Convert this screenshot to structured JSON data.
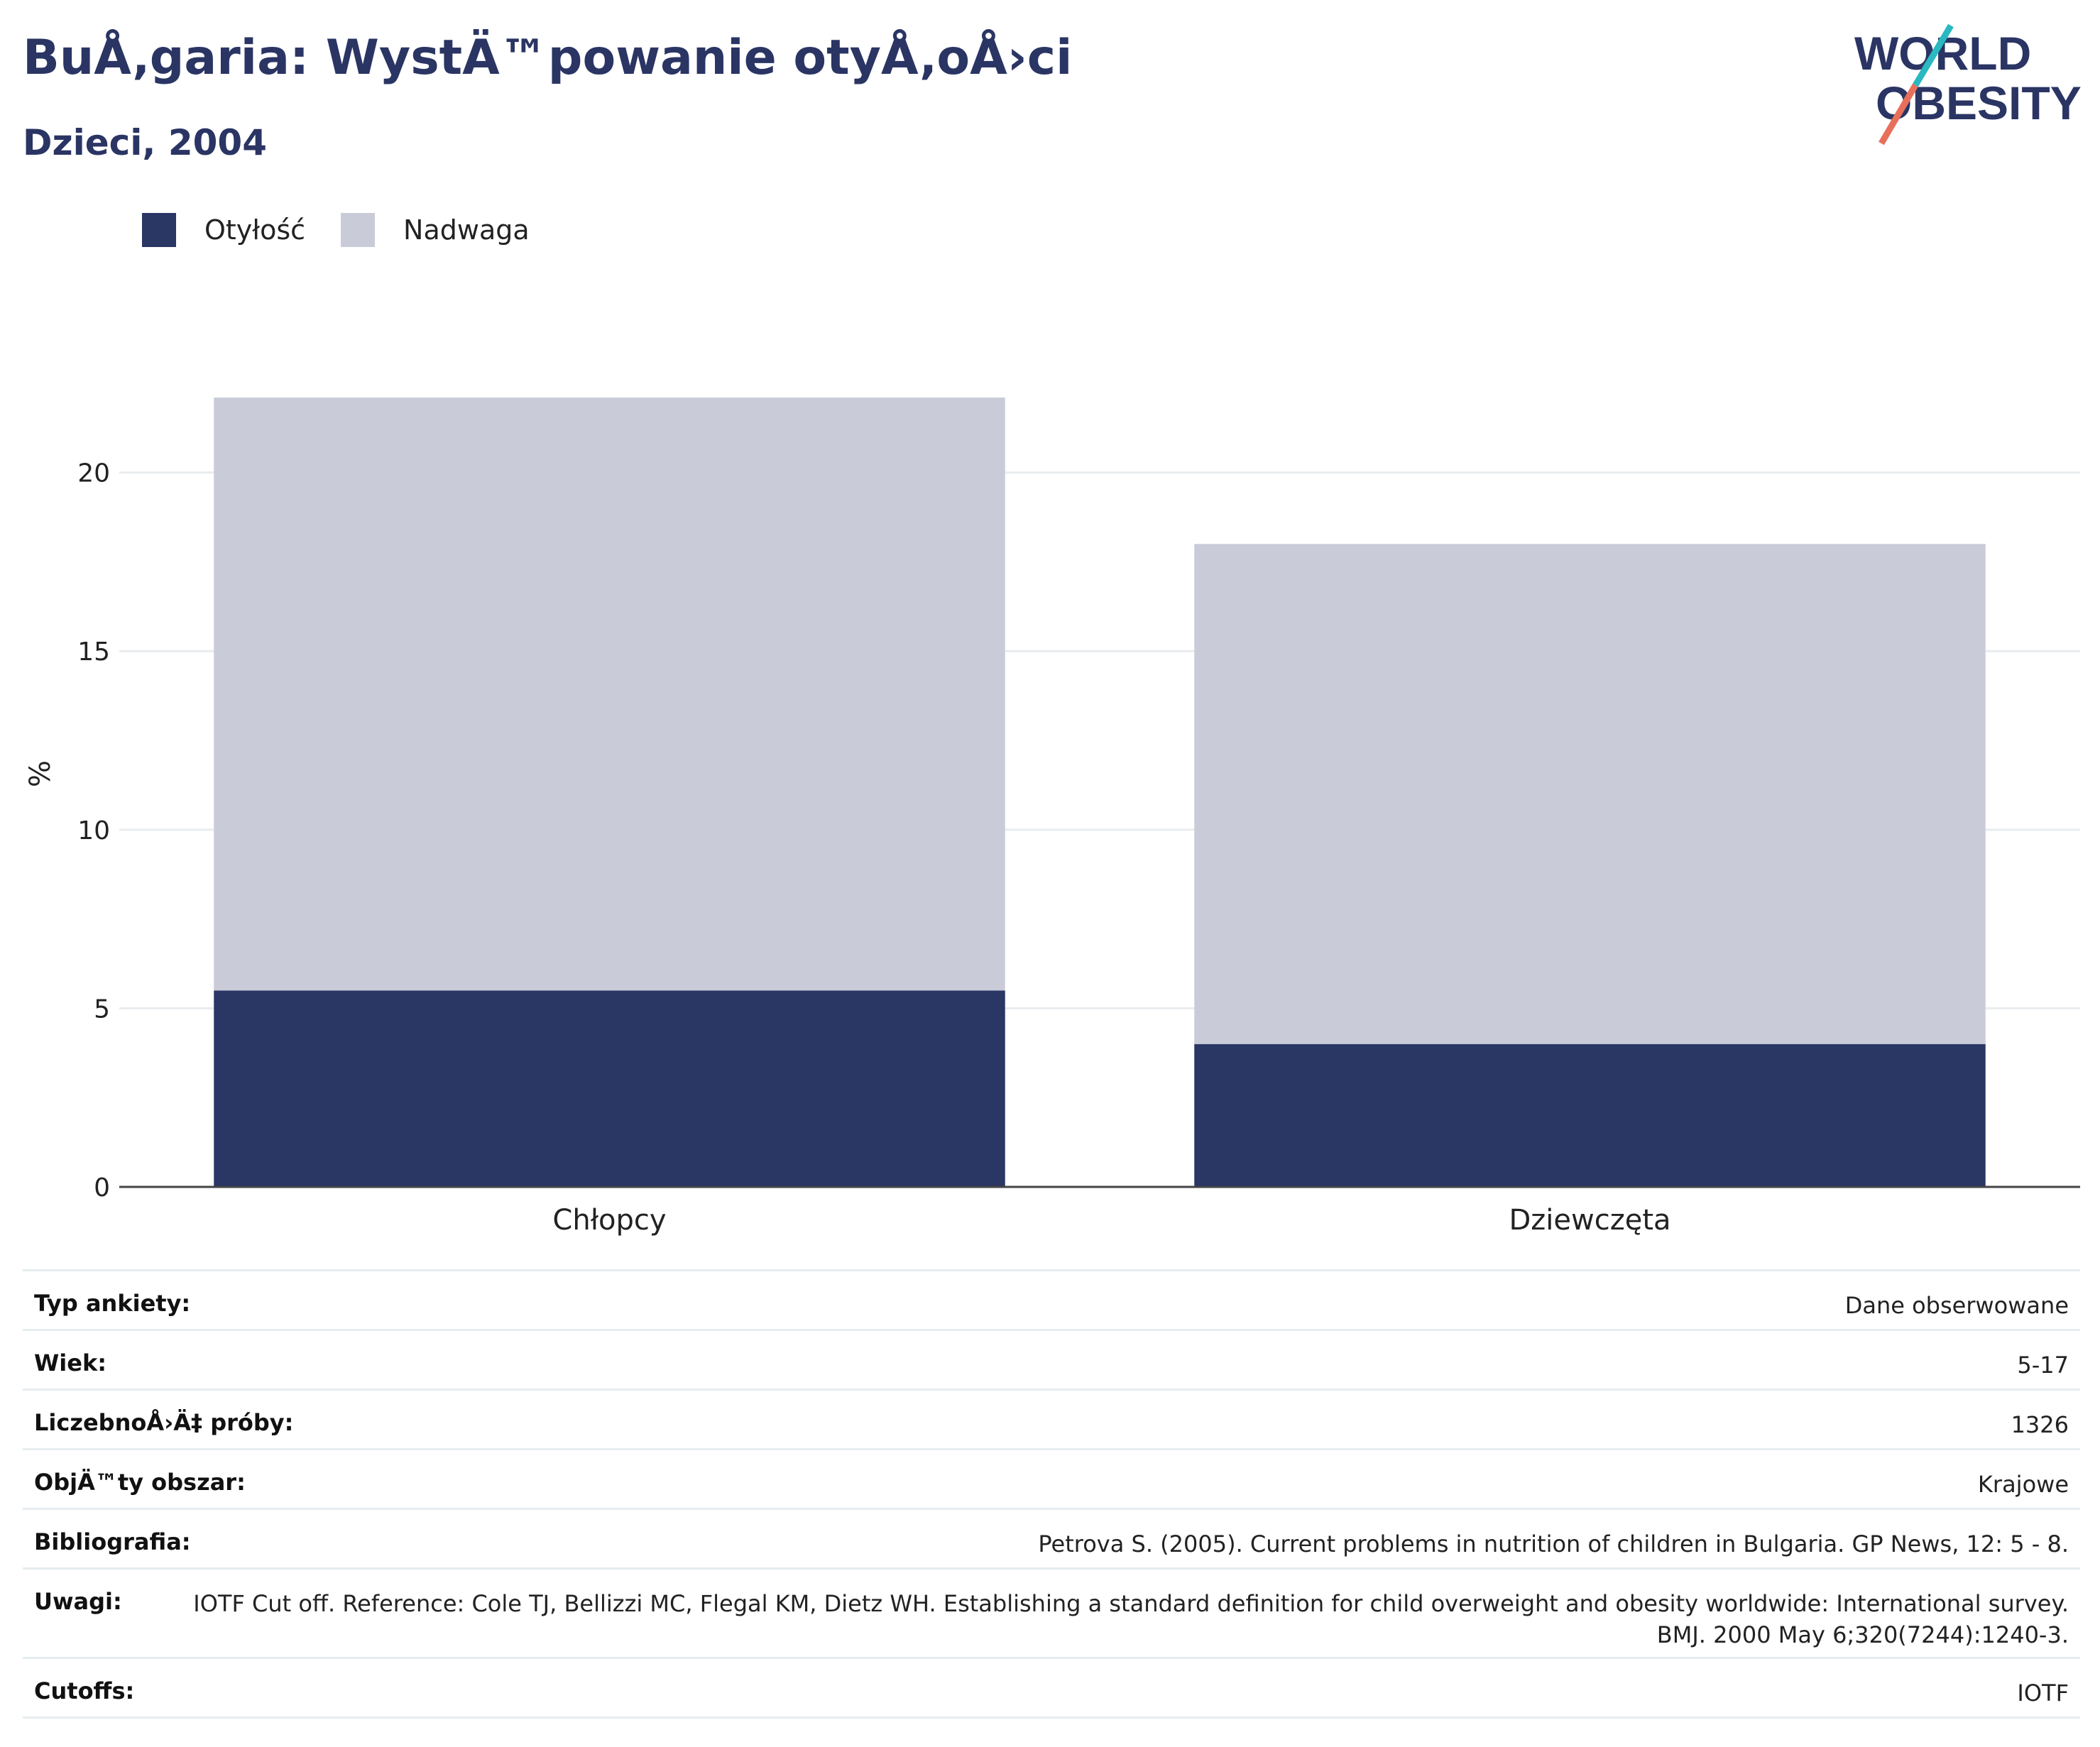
{
  "title": "BuÅ‚garia: WystÄ™powanie otyÅ‚oÅ›ci",
  "subtitle": "Dzieci, 2004",
  "logo": {
    "line1": "WORLD",
    "line2": "OBESITY"
  },
  "colors": {
    "obesity": "#2a3664",
    "overweight": "#c9ccd8",
    "title": "#2a3564",
    "logo_red": "#e8705b",
    "logo_teal": "#2ab8c1"
  },
  "chart_data": {
    "type": "bar",
    "stacked": true,
    "categories": [
      "Chłopcy",
      "Dziewczęta"
    ],
    "series": [
      {
        "name": "Otyłość",
        "values": [
          5.5,
          4.0
        ]
      },
      {
        "name": "Nadwaga",
        "values": [
          16.6,
          14.0
        ]
      }
    ],
    "ylabel": "%",
    "ylim": [
      0,
      22.1
    ],
    "yticks": [
      0,
      5,
      10,
      15,
      20
    ],
    "grid": true,
    "legend_position": "top-left"
  },
  "info": [
    {
      "label": "Typ ankiety:",
      "value": "Dane obserwowane"
    },
    {
      "label": "Wiek:",
      "value": "5-17"
    },
    {
      "label": "LiczebnoÅ›Ä‡ próby:",
      "value": "1326"
    },
    {
      "label": "ObjÄ™ty obszar:",
      "value": "Krajowe"
    },
    {
      "label": "Bibliografia:",
      "value": "Petrova S. (2005). Current problems in nutrition of children in Bulgaria. GP News, 12: 5 - 8."
    },
    {
      "label": "Uwagi:",
      "value": "IOTF Cut off. Reference: Cole TJ, Bellizzi MC, Flegal KM, Dietz WH. Establishing a standard definition for child overweight and obesity worldwide: International survey. BMJ. 2000 May 6;320(7244):1240-3."
    },
    {
      "label": "Cutoffs:",
      "value": "IOTF"
    }
  ]
}
